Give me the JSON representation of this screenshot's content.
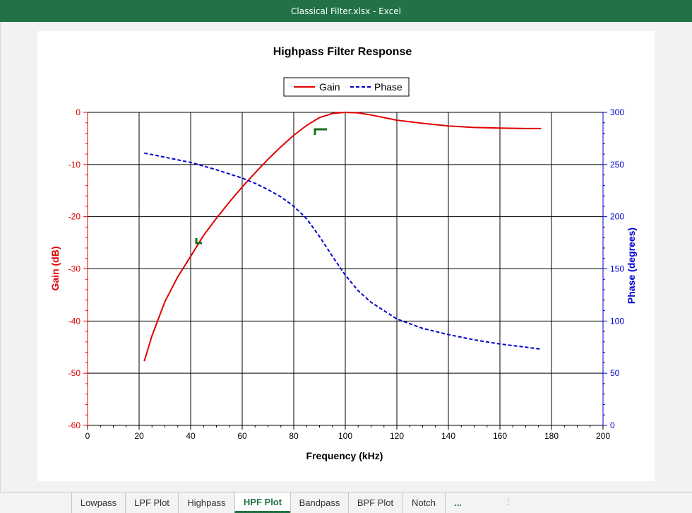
{
  "window": {
    "title": "Classical Filter.xlsx  -  Excel"
  },
  "tabs": [
    {
      "label": "Lowpass",
      "active": false
    },
    {
      "label": "LPF Plot",
      "active": false
    },
    {
      "label": "Highpass",
      "active": false
    },
    {
      "label": "HPF Plot",
      "active": true
    },
    {
      "label": "Bandpass",
      "active": false
    },
    {
      "label": "BPF Plot",
      "active": false
    },
    {
      "label": "Notch",
      "active": false
    },
    {
      "label": "...",
      "active": false
    }
  ],
  "colors": {
    "gain": "#e00000",
    "phase": "#0000cc",
    "titlebar": "#217346",
    "marker": "#1a6b1a"
  },
  "chart_data": {
    "type": "line",
    "title": "Highpass Filter Response",
    "xlabel": "Frequency (kHz)",
    "ylabel": "Gain (dB)",
    "y2label": "Phase (degrees)",
    "xlim": [
      0,
      200
    ],
    "ylim": [
      -60,
      0
    ],
    "y2lim": [
      0,
      300
    ],
    "xticks": [
      "0",
      "20",
      "40",
      "60",
      "80",
      "100",
      "120",
      "140",
      "160",
      "180",
      "200"
    ],
    "yticks": [
      "0",
      "-10",
      "-20",
      "-30",
      "-40",
      "-50",
      "-60"
    ],
    "y2ticks": [
      "300",
      "250",
      "200",
      "150",
      "100",
      "50",
      "0"
    ],
    "grid": true,
    "legend_position": "top-center",
    "series": [
      {
        "name": "Gain",
        "axis": "left",
        "style": "solid",
        "x": [
          22,
          25,
          30,
          35,
          40,
          45,
          50,
          55,
          60,
          65,
          70,
          75,
          80,
          85,
          90,
          95,
          100,
          105,
          110,
          120,
          130,
          140,
          150,
          160,
          170,
          176
        ],
        "y": [
          -47.7,
          -42.8,
          -36.3,
          -31.5,
          -27.6,
          -23.6,
          -20.3,
          -17.2,
          -14.3,
          -11.6,
          -9.0,
          -6.6,
          -4.4,
          -2.5,
          -1.0,
          -0.2,
          0.0,
          -0.1,
          -0.5,
          -1.5,
          -2.1,
          -2.6,
          -2.9,
          -3.0,
          -3.1,
          -3.1
        ]
      },
      {
        "name": "Phase",
        "axis": "right",
        "style": "dashed",
        "x": [
          22,
          30,
          40,
          50,
          60,
          65,
          70,
          75,
          80,
          85,
          90,
          95,
          100,
          105,
          110,
          120,
          130,
          140,
          150,
          160,
          170,
          176
        ],
        "y": [
          261,
          257,
          252,
          245,
          237,
          232,
          226,
          219,
          210,
          198,
          181,
          162,
          144,
          129,
          118,
          102,
          93,
          87,
          82,
          78,
          75,
          73
        ]
      }
    ]
  }
}
